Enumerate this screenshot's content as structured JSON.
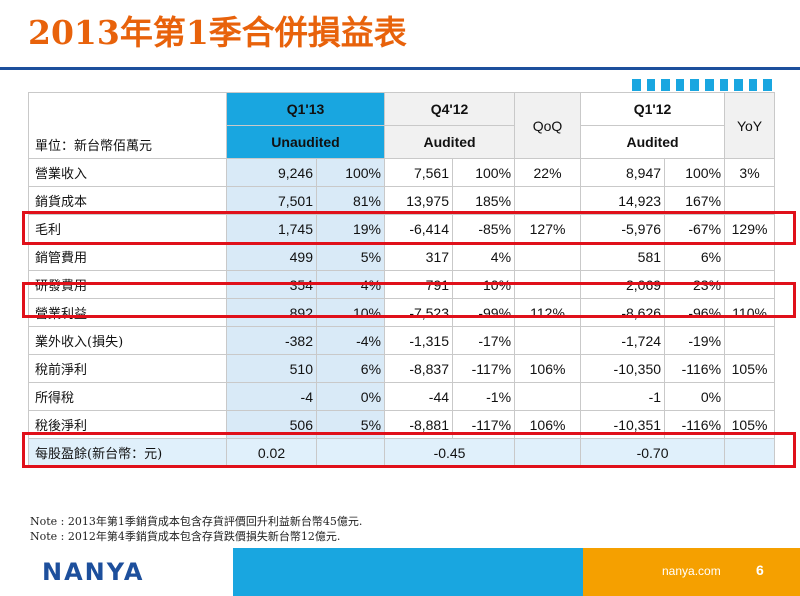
{
  "title": "2013年第1季合併損益表",
  "table": {
    "unit_label": "單位：新台幣佰萬元",
    "headers": {
      "q1_13": "Q1'13",
      "q1_13_sub": "Unaudited",
      "q4_12": "Q4'12",
      "q4_12_sub": "Audited",
      "qoq": "QoQ",
      "q1_12": "Q1'12",
      "q1_12_sub": "Audited",
      "yoy": "YoY"
    },
    "rows": [
      {
        "label": "營業收入",
        "a": "9,246",
        "ap": "100%",
        "b": "7,561",
        "bp": "100%",
        "qoq": "22%",
        "c": "8,947",
        "cp": "100%",
        "yoy": "3%"
      },
      {
        "label": "銷貨成本",
        "a": "7,501",
        "ap": "81%",
        "b": "13,975",
        "bp": "185%",
        "qoq": "",
        "c": "14,923",
        "cp": "167%",
        "yoy": ""
      },
      {
        "label": "毛利",
        "a": "1,745",
        "ap": "19%",
        "b": "-6,414",
        "bp": "-85%",
        "qoq": "127%",
        "c": "-5,976",
        "cp": "-67%",
        "yoy": "129%"
      },
      {
        "label": "銷管費用",
        "a": "499",
        "ap": "5%",
        "b": "317",
        "bp": "4%",
        "qoq": "",
        "c": "581",
        "cp": "6%",
        "yoy": ""
      },
      {
        "label": "研發費用",
        "a": "354",
        "ap": "4%",
        "b": "791",
        "bp": "10%",
        "qoq": "",
        "c": "2,069",
        "cp": "23%",
        "yoy": ""
      },
      {
        "label": "營業利益",
        "a": "892",
        "ap": "10%",
        "b": "-7,523",
        "bp": "-99%",
        "qoq": "112%",
        "c": "-8,626",
        "cp": "-96%",
        "yoy": "110%"
      },
      {
        "label": "業外收入(損失)",
        "a": "-382",
        "ap": "-4%",
        "b": "-1,315",
        "bp": "-17%",
        "qoq": "",
        "c": "-1,724",
        "cp": "-19%",
        "yoy": ""
      },
      {
        "label": "稅前淨利",
        "a": "510",
        "ap": "6%",
        "b": "-8,837",
        "bp": "-117%",
        "qoq": "106%",
        "c": "-10,350",
        "cp": "-116%",
        "yoy": "105%"
      },
      {
        "label": "所得稅",
        "a": "-4",
        "ap": "0%",
        "b": "-44",
        "bp": "-1%",
        "qoq": "",
        "c": "-1",
        "cp": "0%",
        "yoy": ""
      },
      {
        "label": "稅後淨利",
        "a": "506",
        "ap": "5%",
        "b": "-8,881",
        "bp": "-117%",
        "qoq": "106%",
        "c": "-10,351",
        "cp": "-116%",
        "yoy": "105%"
      }
    ],
    "eps": {
      "label": "每股盈餘(新台幣：元)",
      "a": "0.02",
      "b": "-0.45",
      "c": "-0.70"
    }
  },
  "notes": [
    "Note : 2013年第1季銷貨成本包含存貨評價回升利益新台幣45億元.",
    "Note : 2012年第4季銷貨成本包含存貨跌價損失新台幣12億元."
  ],
  "footer": {
    "logo": "NANYA",
    "site": "nanya.com",
    "page": "6"
  },
  "colors": {
    "title": "#e8620b",
    "accent_blue": "#19a6e0",
    "dark_blue": "#1d4f9c",
    "orange": "#f5a000",
    "highlight": "#e0101a"
  }
}
